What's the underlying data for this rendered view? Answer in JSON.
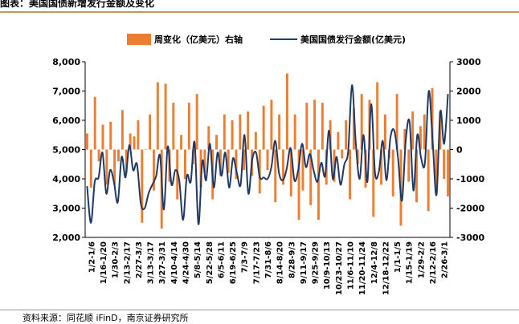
{
  "figure_title": "图表：美国国债新增发行金额及变化",
  "source_note": "资料来源：同花顺 iFinD，南京证券研究所",
  "colors": {
    "bar": "#ED7D31",
    "line": "#1F3864",
    "rule": "#c79a5a"
  },
  "chart_data": {
    "type": "bar+line",
    "xlabel": "",
    "ylabel": "",
    "legend": {
      "placement": "top",
      "entries": [
        "周变化（亿美元）右轴",
        "美国国债发行金额(亿美元)"
      ]
    },
    "y_left": {
      "min": 2000,
      "max": 8000,
      "ticks": [
        "2,000",
        "3,000",
        "4,000",
        "5,000",
        "6,000",
        "7,000",
        "8,000"
      ]
    },
    "y_right": {
      "min": -3000,
      "max": 3000,
      "ticks": [
        "-3000",
        "-2000",
        "-1000",
        "0",
        "1000",
        "2000",
        "3000"
      ]
    },
    "x_tick_labels": [
      "1/2-1/6",
      "1/16-1/20",
      "1/30-2/3",
      "2/13-2/17",
      "2/27-3/3",
      "3/13-3/17",
      "3/27-3/31",
      "4/10-4/14",
      "4/24-4/30",
      "5/8-5/14",
      "5/22-5/28",
      "6/5-6/11",
      "6/19-6/25",
      "7/3-7/9",
      "7/17-7/23",
      "7/31-8/6",
      "8/14-8/20",
      "8/28-9/3",
      "9/11-9/17",
      "9/25-9/29",
      "10/9-10/13",
      "10/23-10/27",
      "11/6-11/10",
      "11/20-11/24",
      "12/4-12/8",
      "12/18-12/22",
      "1/1-1/5",
      "1/15-1/19",
      "1/29-2/2",
      "2/12-2/16",
      "2/26-3/1"
    ],
    "series": [
      {
        "name": "周变化（亿美元）右轴",
        "type": "bar",
        "axis": "right",
        "values": [
          550,
          -1300,
          1800,
          -400,
          850,
          -1200,
          950,
          -1200,
          -400,
          1350,
          -800,
          550,
          450,
          1000,
          -2500,
          0,
          1200,
          -1400,
          2300,
          -2700,
          2250,
          -1100,
          1600,
          -1700,
          500,
          -1000,
          1600,
          -500,
          1900,
          -1300,
          -800,
          800,
          -1700,
          500,
          -900,
          1200,
          -800,
          1000,
          -1000,
          1200,
          -700,
          1300,
          -900,
          600,
          -1500,
          1500,
          -700,
          1700,
          -1800,
          1200,
          -1200,
          2600,
          -1600,
          1200,
          -2400,
          -1400,
          1600,
          -1900,
          1700,
          -2400,
          1600,
          -1200,
          1000,
          -1100,
          600,
          -300,
          1000,
          -1700,
          1400,
          -500,
          1900,
          -1300,
          1700,
          -2300,
          2300,
          -1200,
          1200,
          -300,
          -1600,
          1900,
          -2600,
          700,
          -1100,
          1300,
          -1800,
          800,
          1200,
          -2100,
          2100,
          -1300,
          1300,
          -1000,
          -1600
        ]
      },
      {
        "name": "美国国债发行金额(亿美元)",
        "type": "line",
        "axis": "left",
        "values": [
          3750,
          2500,
          3900,
          4050,
          4900,
          3500,
          4300,
          3900,
          3200,
          4750,
          4050,
          5150,
          4300,
          4500,
          3150,
          3000,
          3500,
          3800,
          4100,
          4800,
          2950,
          5100,
          3800,
          4300,
          3950,
          2600,
          4100,
          3900,
          5250,
          2450,
          4600,
          3950,
          5200,
          3700,
          4900,
          4100,
          4900,
          3700,
          4700,
          4200,
          3800,
          5500,
          3500,
          4650,
          4900,
          4050,
          4050,
          4000,
          4400,
          5300,
          4200,
          3950,
          4350,
          5050,
          3950,
          4300,
          5200,
          4400,
          4850,
          4300,
          3900,
          4550,
          4100,
          5650,
          4000,
          4750,
          3800,
          4500,
          4950,
          7200,
          5200,
          4000,
          5500,
          3900,
          6550,
          4200,
          4250,
          5300,
          3950,
          5400,
          5650,
          4700,
          3250,
          5300,
          5950,
          3600,
          5500,
          4700,
          4550,
          7000,
          5300,
          3450,
          6300,
          5200,
          6900
        ]
      }
    ]
  }
}
